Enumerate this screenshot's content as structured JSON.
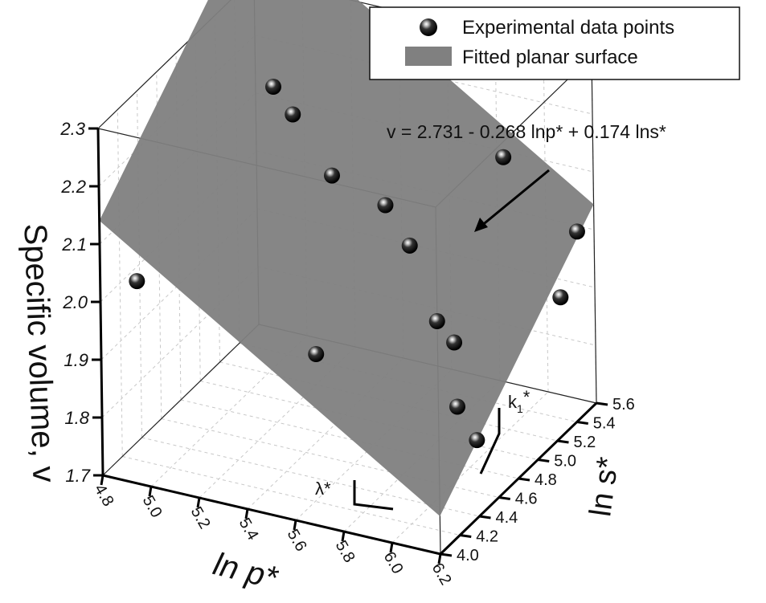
{
  "colors": {
    "plane": "#808080",
    "points": "#111111",
    "grid": "#c8c8c8",
    "axis": "#000000"
  },
  "icons": [
    "sphere-marker-icon",
    "legend-swatch-icon",
    "arrow-icon"
  ],
  "legend": {
    "position": "top-right",
    "items": [
      {
        "label": "Experimental data points",
        "icon": "sphere-marker-icon"
      },
      {
        "label": "Fitted planar surface",
        "icon": "legend-swatch-icon"
      }
    ]
  },
  "annotations": {
    "equation": "v = 2.731 - 0.268 lnp* + 0.174 lns*",
    "lambda": "λ*",
    "kappa_base": "k",
    "kappa_sub": "1",
    "kappa_star": "*"
  },
  "chart_data": {
    "type": "scatter3d",
    "title": "",
    "xlabel": "ln p*",
    "ylabel": "ln s*",
    "zlabel": "Specific volume, v",
    "xlim": [
      4.8,
      6.2
    ],
    "ylim": [
      4.0,
      5.6
    ],
    "zlim": [
      1.7,
      2.3
    ],
    "x_ticks": [
      "4.8",
      "5.0",
      "5.2",
      "5.4",
      "5.6",
      "5.8",
      "6.0",
      "6.2"
    ],
    "y_ticks": [
      "4.0",
      "4.2",
      "4.4",
      "4.6",
      "4.8",
      "5.0",
      "5.2",
      "5.4",
      "5.6"
    ],
    "z_ticks": [
      "1.7",
      "1.8",
      "1.9",
      "2.0",
      "2.1",
      "2.2",
      "2.3"
    ],
    "grid": true,
    "surface": {
      "name": "Fitted planar surface",
      "intercept": 2.731,
      "coef_lnp": -0.268,
      "coef_lns": 0.174
    },
    "series": [
      {
        "name": "Experimental data points",
        "points": [
          {
            "x": 4.85,
            "y": 4.25,
            "z": 2.0
          },
          {
            "x": 5.1,
            "y": 5.05,
            "z": 2.23
          },
          {
            "x": 5.2,
            "y": 5.0,
            "z": 2.2
          },
          {
            "x": 5.38,
            "y": 4.95,
            "z": 2.12
          },
          {
            "x": 5.58,
            "y": 5.0,
            "z": 2.08
          },
          {
            "x": 5.72,
            "y": 4.9,
            "z": 2.04
          },
          {
            "x": 5.9,
            "y": 5.5,
            "z": 2.26
          },
          {
            "x": 5.95,
            "y": 5.3,
            "z": 2.15
          },
          {
            "x": 5.62,
            "y": 4.18,
            "z": 1.96
          },
          {
            "x": 5.85,
            "y": 4.85,
            "z": 1.93
          },
          {
            "x": 5.92,
            "y": 4.85,
            "z": 1.9
          },
          {
            "x": 6.15,
            "y": 5.55,
            "z": 2.0
          },
          {
            "x": 6.18,
            "y": 5.3,
            "z": 1.93
          },
          {
            "x": 5.95,
            "y": 4.8,
            "z": 1.8
          },
          {
            "x": 6.05,
            "y": 4.75,
            "z": 1.76
          }
        ]
      }
    ]
  }
}
